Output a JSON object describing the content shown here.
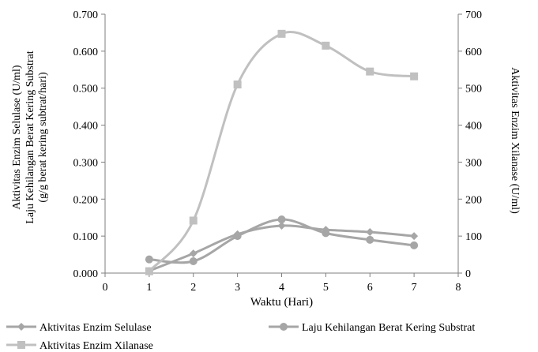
{
  "chart_data": {
    "type": "line",
    "x": [
      1,
      2,
      3,
      4,
      5,
      6,
      7
    ],
    "xlabel": "Waktu (Hari)",
    "xlim": [
      0,
      8
    ],
    "xticks": [
      "0",
      "1",
      "2",
      "3",
      "4",
      "5",
      "6",
      "7",
      "8"
    ],
    "ylabel_left": [
      "Aktivitas Enzim Selulase (U/ml)",
      "Laju Kehilangan Berat Kering Substrat",
      "(g/g berat kering subtrat/hari)"
    ],
    "ylim_left": [
      0,
      0.7
    ],
    "yticks_left": [
      "0.000",
      "0.100",
      "0.200",
      "0.300",
      "0.400",
      "0.500",
      "0.600",
      "0.700"
    ],
    "ylabel_right": "Aktivitas Enzim Xilanase (U/ml)",
    "ylim_right": [
      0,
      700
    ],
    "yticks_right": [
      "0",
      "100",
      "200",
      "300",
      "400",
      "500",
      "600",
      "700"
    ],
    "grid": false,
    "legend_position": "bottom",
    "series": [
      {
        "name": "Aktivitas Enzim Selulase",
        "axis": "left",
        "marker": "diamond",
        "color": "#a6a6a6",
        "values": [
          0.006,
          0.053,
          0.105,
          0.128,
          0.117,
          0.111,
          0.1
        ]
      },
      {
        "name": "Laju Kehilangan Berat Kering Substrat",
        "axis": "left",
        "marker": "circle",
        "color": "#a6a6a6",
        "values": [
          0.037,
          0.032,
          0.1,
          0.145,
          0.108,
          0.09,
          0.075
        ]
      },
      {
        "name": "Aktivitas Enzim Xilanase",
        "axis": "right",
        "marker": "square",
        "color": "#c0c0c0",
        "values": [
          5,
          142,
          510,
          647,
          615,
          545,
          532
        ]
      }
    ]
  }
}
